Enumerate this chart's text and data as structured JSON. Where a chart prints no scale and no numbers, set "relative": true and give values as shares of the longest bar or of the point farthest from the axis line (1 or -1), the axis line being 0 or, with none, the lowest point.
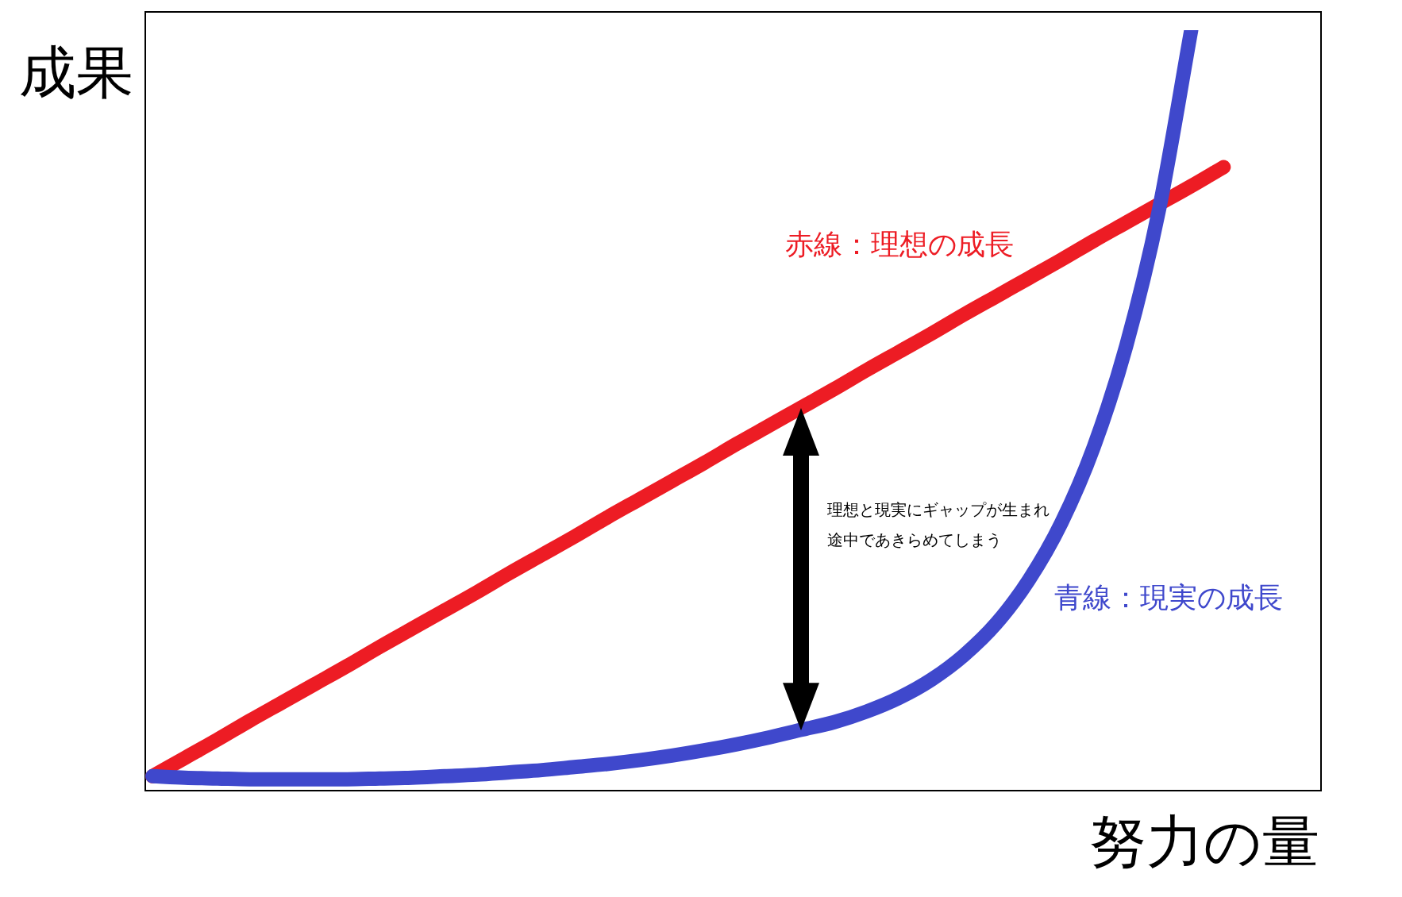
{
  "chart_data": {
    "type": "line",
    "relative": true,
    "xlabel": "努力の量",
    "ylabel": "成果",
    "categories": [
      null,
      null,
      null,
      null,
      null,
      null,
      null,
      null,
      null,
      null,
      null,
      null,
      null,
      null,
      null,
      null,
      null,
      null,
      null,
      null,
      null,
      null,
      null,
      null,
      null,
      null,
      null,
      null,
      null,
      null,
      null,
      null,
      null,
      null,
      null,
      null,
      null
    ],
    "series": [
      {
        "name": "赤線：理想の成長",
        "color": "#ed1c24",
        "values": [
          0.019,
          0.043,
          0.067,
          0.092,
          0.116,
          0.14,
          0.164,
          0.189,
          0.213,
          0.237,
          0.261,
          0.286,
          0.31,
          0.334,
          0.359,
          0.383,
          0.407,
          0.431,
          0.456,
          0.48,
          0.504,
          0.528,
          0.553,
          0.577,
          0.601,
          0.626,
          0.65,
          0.674,
          0.698,
          0.723,
          0.747,
          0.771,
          0.795,
          0.82,
          null,
          null,
          null
        ]
      },
      {
        "name": "青線：現実の成長",
        "color": "#3f48cc",
        "values": [
          0.019,
          0.017,
          0.016,
          0.015,
          0.015,
          0.015,
          0.015,
          0.016,
          0.017,
          0.019,
          0.021,
          0.024,
          0.027,
          0.031,
          0.035,
          0.04,
          0.046,
          0.053,
          0.061,
          0.07,
          0.08,
          0.09,
          0.104,
          0.122,
          0.146,
          0.178,
          0.22,
          0.277,
          0.352,
          0.452,
          0.585,
          0.762,
          1,
          null,
          null,
          null,
          null
        ]
      }
    ],
    "annotations": [
      "理想と現実にギャップが生まれ途中であきらめてしまう"
    ],
    "marker": "none",
    "line_style": "solid"
  }
}
